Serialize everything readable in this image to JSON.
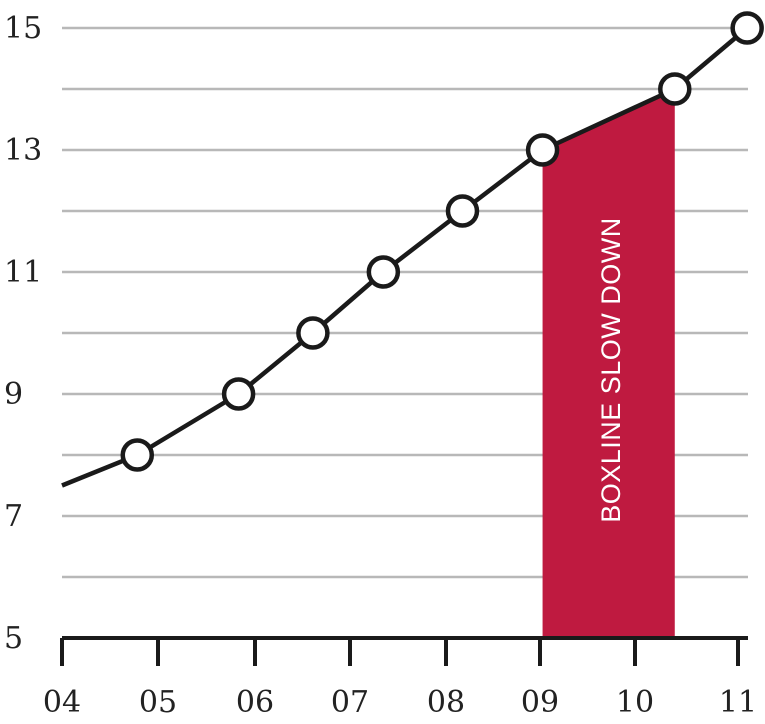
{
  "chart_data": {
    "type": "line",
    "title": "",
    "xlabel": "",
    "ylabel": "",
    "x_ticks": [
      "04",
      "05",
      "06",
      "07",
      "08",
      "09",
      "10",
      "11"
    ],
    "y_ticks": [
      "5",
      "7",
      "9",
      "11",
      "13",
      "15"
    ],
    "ylim": [
      5,
      15
    ],
    "xlim": [
      4,
      11.1
    ],
    "grid": "horizontal, every 1 unit",
    "series": [
      {
        "color": "#1a1a1a",
        "marker": "hollow-circle",
        "points": [
          {
            "x": 4.0,
            "y": 7.5,
            "marker": false
          },
          {
            "x": 4.78,
            "y": 8,
            "marker": true
          },
          {
            "x": 5.83,
            "y": 9,
            "marker": true
          },
          {
            "x": 6.6,
            "y": 10,
            "marker": true
          },
          {
            "x": 7.33,
            "y": 11,
            "marker": true
          },
          {
            "x": 8.15,
            "y": 12,
            "marker": true
          },
          {
            "x": 8.98,
            "y": 13,
            "marker": true
          },
          {
            "x": 10.35,
            "y": 14,
            "marker": true
          },
          {
            "x": 11.1,
            "y": 15,
            "marker": true
          }
        ]
      }
    ],
    "annotations": [
      {
        "type": "shaded-region",
        "label": "BOXLINE SLOW DOWN",
        "x_start": 8.98,
        "x_end": 10.35,
        "color": "#bf1a40"
      }
    ]
  }
}
